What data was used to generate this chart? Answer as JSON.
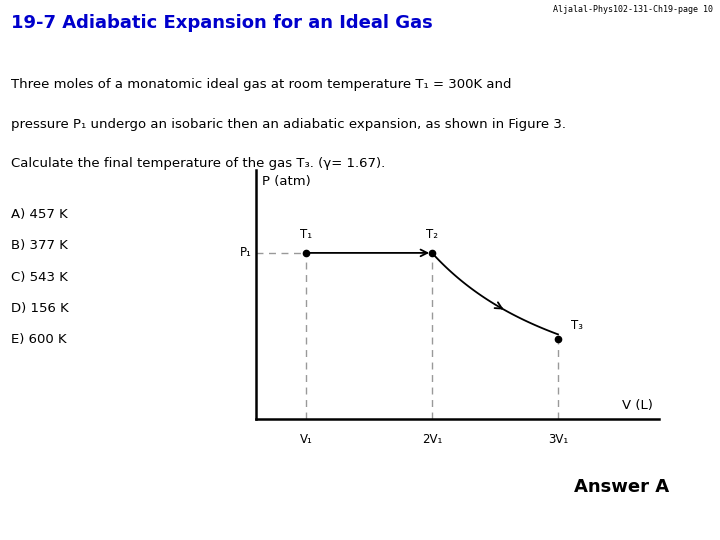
{
  "title": "19-7 Adiabatic Expansion for an Ideal Gas",
  "header_ref": "Aljalal-Phys102-131-Ch19-page 10",
  "bg_color": "#ffffff",
  "title_color": "#0000cc",
  "body_lines": [
    "Three moles of a monatomic ideal gas at room temperature T₁ = 300K and",
    "pressure P₁ undergo an isobaric then an adiabatic expansion, as shown in Figure 3.",
    "Calculate the final temperature of the gas T₃. (γ= 1.67)."
  ],
  "choices": [
    "A) 457 K",
    "B) 377 K",
    "C) 543 K",
    "D) 156 K",
    "E) 600 K"
  ],
  "answer": "Answer A",
  "graph": {
    "xlabel": "V (L)",
    "ylabel": "P (atm)",
    "p1_label": "P₁",
    "x_tick_labels": [
      "V₁",
      "2V₁",
      "3V₁"
    ],
    "x_tick_vals": [
      1,
      2,
      3
    ],
    "point1": [
      1,
      1.0
    ],
    "point2": [
      2,
      1.0
    ],
    "point3": [
      3,
      0.48
    ],
    "adiabat_gamma": 1.67,
    "dashed_color": "#999999",
    "T1_label": "T₁",
    "T2_label": "T₂",
    "T3_label": "T₃",
    "xlim": [
      0.6,
      3.8
    ],
    "ylim": [
      0.0,
      1.5
    ]
  }
}
